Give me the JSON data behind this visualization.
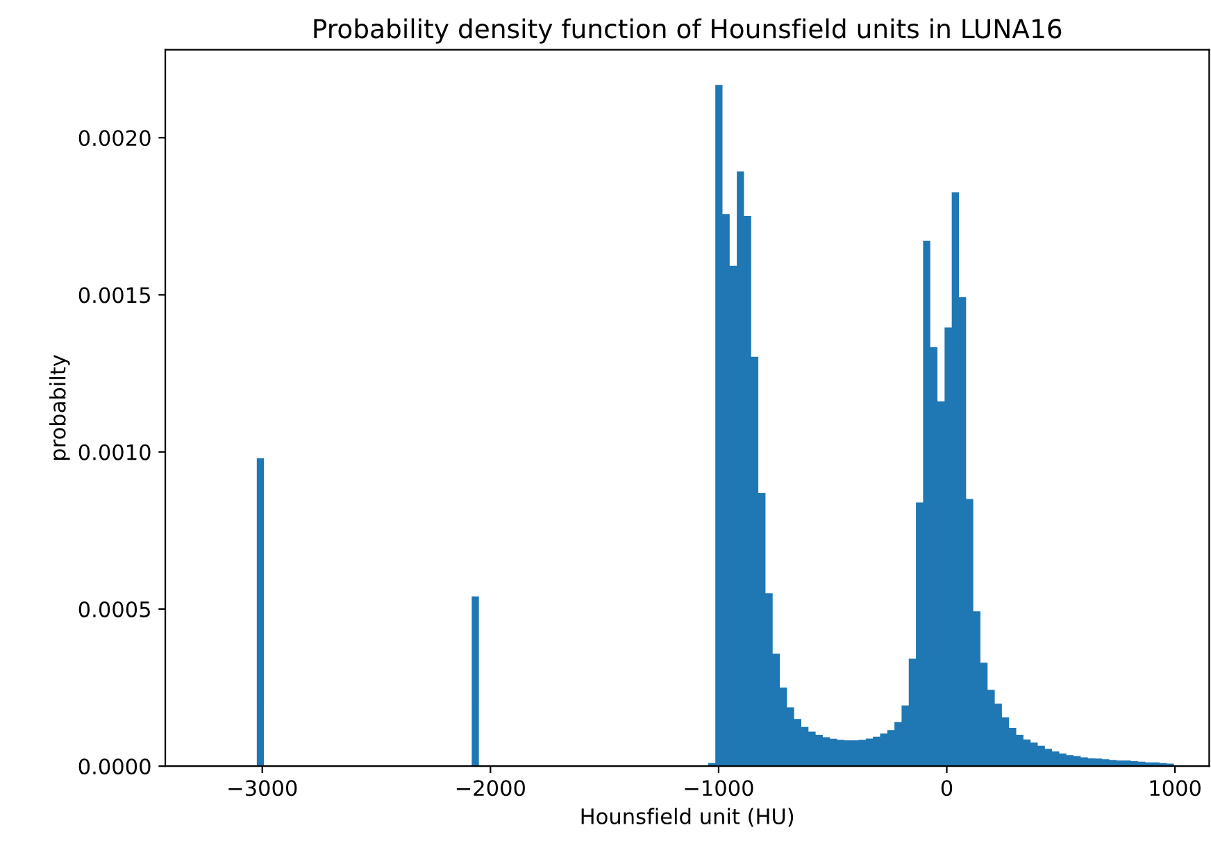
{
  "chart_data": {
    "type": "histogram",
    "title": "Probability density function of Hounsfield units in LUNA16",
    "xlabel": "Hounsfield unit (HU)",
    "ylabel": "probabilty",
    "color": "#1f77b4",
    "bins": [
      -3024,
      -2992.6,
      -2961.2,
      -2929.8,
      -2898.4,
      -2867,
      -2835.6,
      -2804.2,
      -2772.8,
      -2741.4,
      -2710,
      -2678.6,
      -2647.2,
      -2615.8,
      -2584.4,
      -2553,
      -2521.6,
      -2490.2,
      -2458.8,
      -2427.4,
      -2396,
      -2364.6,
      -2333.2,
      -2301.8,
      -2270.4,
      -2239,
      -2207.6,
      -2176.2,
      -2144.8,
      -2113.4,
      -2082,
      -2050.6,
      -2019.2,
      -1987.8,
      -1956.4,
      -1925,
      -1893.6,
      -1862.2,
      -1830.8,
      -1799.4,
      -1768,
      -1736.6,
      -1705.2,
      -1673.8,
      -1642.4,
      -1611,
      -1579.6,
      -1548.2,
      -1516.8,
      -1485.4,
      -1454,
      -1422.6,
      -1391.2,
      -1359.8,
      -1328.4,
      -1297,
      -1265.6,
      -1234.2,
      -1202.8,
      -1171.4,
      -1140,
      -1108.6,
      -1077.2,
      -1045.8,
      -1014.4,
      -983,
      -951.6,
      -920.2,
      -888.8,
      -857.4,
      -826,
      -794.6,
      -763.2,
      -731.8,
      -700.4,
      -669,
      -637.6,
      -606.2,
      -574.8,
      -543.4,
      -512,
      -480.6,
      -449.2,
      -417.8,
      -386.4,
      -355,
      -323.6,
      -292.2,
      -260.8,
      -229.4,
      -198,
      -166.6,
      -135.2,
      -103.8,
      -72.4,
      -41,
      -9.6,
      21.8,
      53.2,
      84.6,
      116,
      147.4,
      178.8,
      210.2,
      241.6,
      273,
      304.4,
      335.8,
      367.2,
      398.6,
      430,
      461.4,
      492.8,
      524.2,
      555.6,
      587,
      618.4,
      649.8,
      681.2,
      712.6,
      744,
      775.4,
      806.8,
      838.2,
      869.6,
      901,
      932.4,
      963.8,
      995.2
    ],
    "values": [
      0.00098,
      0,
      0,
      0,
      0,
      0,
      0,
      0,
      0,
      0,
      0,
      0,
      0,
      0,
      0,
      0,
      0,
      0,
      0,
      0,
      0,
      0,
      0,
      0,
      0,
      0,
      0,
      0,
      0,
      0,
      0.00054,
      0,
      0,
      0,
      0,
      0,
      0,
      0,
      0,
      0,
      0,
      0,
      0,
      0,
      0,
      0,
      0,
      0,
      0,
      0,
      0,
      0,
      0,
      0,
      0,
      0,
      0,
      0,
      0,
      0,
      0,
      0,
      0,
      1e-05,
      0.002168,
      0.001757,
      0.001592,
      0.001893,
      0.001751,
      0.001303,
      0.000869,
      0.00055,
      0.000358,
      0.00025,
      0.000187,
      0.00015,
      0.000125,
      0.00011,
      0.0001,
      9.2e-05,
      8.7e-05,
      8.4e-05,
      8.2e-05,
      8.2e-05,
      8.4e-05,
      8.8e-05,
      9.4e-05,
      0.000104,
      0.000115,
      0.00014,
      0.000193,
      0.000342,
      0.000839,
      0.001672,
      0.001333,
      0.001161,
      0.001396,
      0.001826,
      0.001492,
      0.00085,
      0.000493,
      0.000329,
      0.000243,
      0.000199,
      0.000155,
      0.000122,
      0.0001,
      8.5e-05,
      7.5e-05,
      6.5e-05,
      5.5e-05,
      4.7e-05,
      4e-05,
      3.5e-05,
      3.2e-05,
      2.8e-05,
      2.5e-05,
      2.4e-05,
      2.2e-05,
      2e-05,
      1.8e-05,
      1.8e-05,
      1.6e-05,
      1.4e-05,
      1.2e-05,
      1.2e-05,
      1e-05,
      8e-06
    ],
    "xlim": [
      -3425,
      1150
    ],
    "ylim": [
      0,
      0.00228
    ],
    "xticks": [
      {
        "value": -3000,
        "label": "−3000"
      },
      {
        "value": -2000,
        "label": "−2000"
      },
      {
        "value": -1000,
        "label": "−1000"
      },
      0,
      1000
    ],
    "yticks": [
      {
        "value": 0,
        "label": "0.0000"
      },
      {
        "value": 0.0005,
        "label": "0.0005"
      },
      {
        "value": 0.001,
        "label": "0.0010"
      },
      {
        "value": 0.0015,
        "label": "0.0015"
      },
      {
        "value": 0.002,
        "label": "0.0020"
      }
    ],
    "grid": false
  }
}
